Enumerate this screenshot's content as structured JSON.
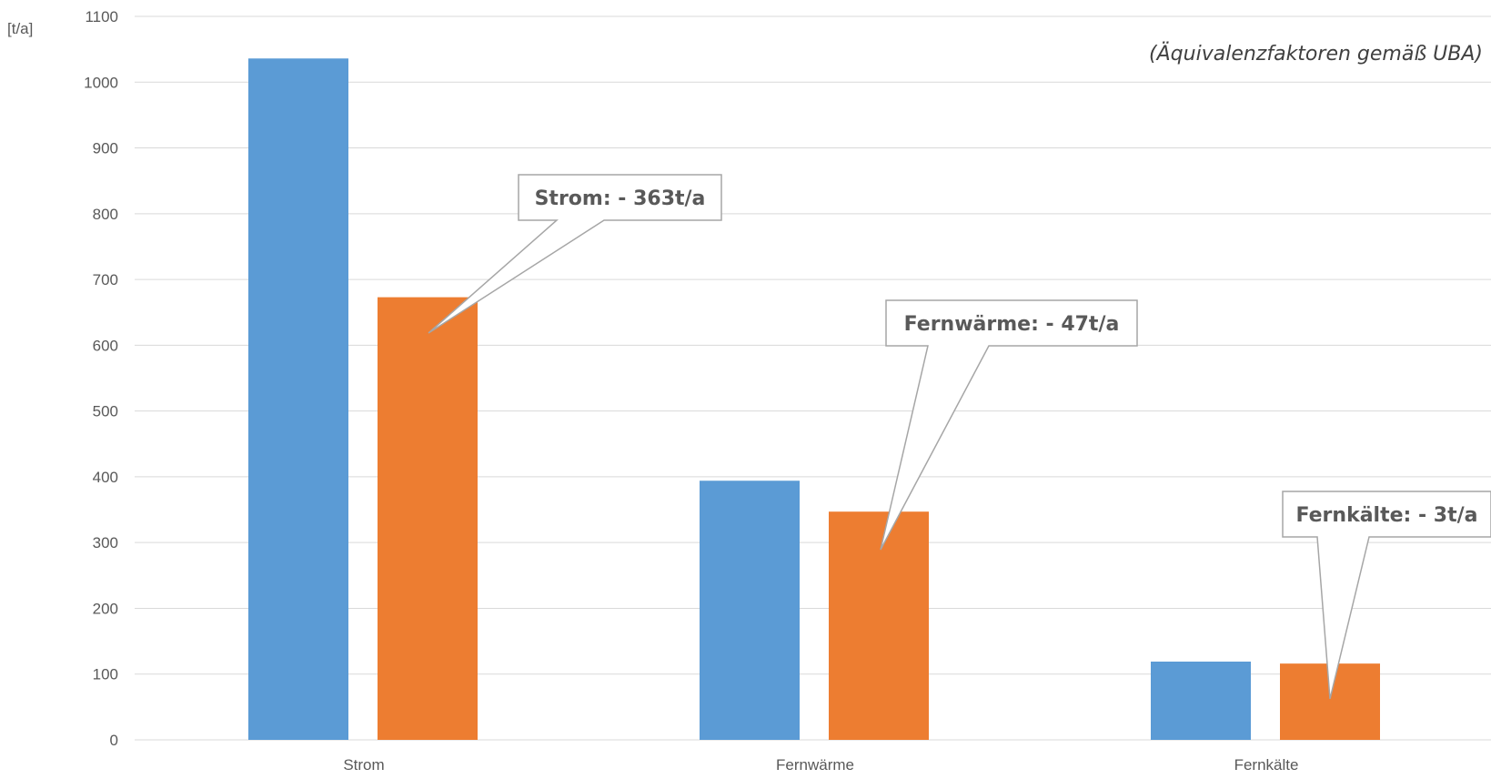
{
  "chart_data": {
    "type": "bar",
    "categories": [
      "Strom",
      "Fernwärme",
      "Fernkälte"
    ],
    "series": [
      {
        "color": "#5b9bd5",
        "values": [
          1036,
          394,
          119
        ]
      },
      {
        "color": "#ed7d31",
        "values": [
          673,
          347,
          116
        ]
      }
    ],
    "ylim": [
      0,
      1100
    ],
    "yticks": [
      0,
      100,
      200,
      300,
      400,
      500,
      600,
      700,
      800,
      900,
      1000,
      1100
    ],
    "ylabel": "[t/a]",
    "grid": true,
    "annotation_note": "(Äquivalenzfaktoren gemäß UBA)",
    "callouts": [
      {
        "text": "Strom: - 363t/a",
        "category_index": 0,
        "series_index": 1
      },
      {
        "text": "Fernwärme: - 47t/a",
        "category_index": 1,
        "series_index": 1
      },
      {
        "text": "Fernkälte: - 3t/a",
        "category_index": 2,
        "series_index": 1
      }
    ]
  }
}
